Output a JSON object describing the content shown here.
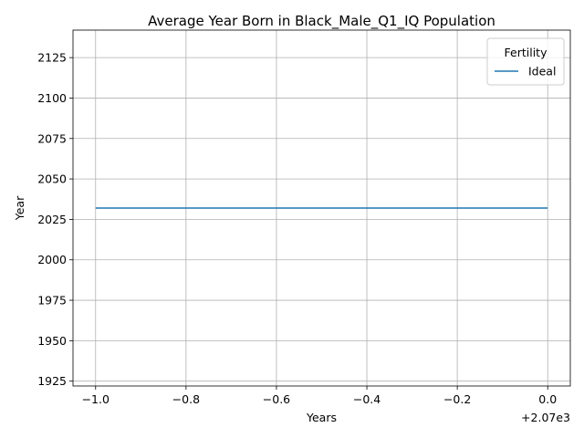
{
  "chart_data": {
    "type": "line",
    "title": "Average Year Born in Black_Male_Q1_IQ Population",
    "xlabel": "Years",
    "ylabel": "Year",
    "x_offset_label": "+2.07e3",
    "x_tick_labels": [
      "−1.0",
      "−0.8",
      "−0.6",
      "−0.4",
      "−0.2",
      "0.0"
    ],
    "y_tick_labels": [
      "1925",
      "1950",
      "1975",
      "2000",
      "2025",
      "2050",
      "2075",
      "2100",
      "2125"
    ],
    "xlim": [
      2068.95,
      2070.05
    ],
    "ylim": [
      1922,
      2142
    ],
    "grid": true,
    "legend": {
      "title": "Fertility",
      "placement": "top-right"
    },
    "series": [
      {
        "name": "Ideal",
        "color": "#1f77b4",
        "x": [
          2069,
          2070
        ],
        "y": [
          2032,
          2032
        ]
      }
    ]
  }
}
